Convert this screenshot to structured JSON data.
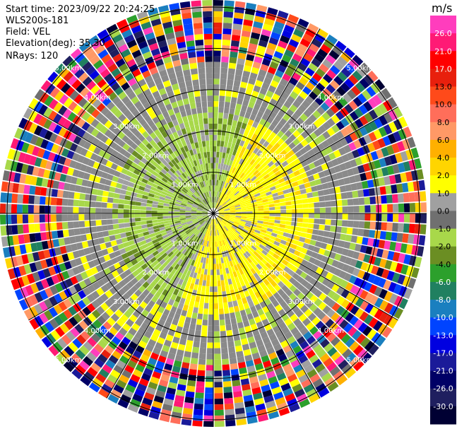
{
  "header": {
    "start_time": "Start time: 2023/09/22 20:24:25",
    "instrument": "WLS200s-181",
    "field": "Field: VEL",
    "elevation": "Elevation(deg): 35.30",
    "nrays": "NRays: 120"
  },
  "colorbar": {
    "unit": "m/s",
    "tick_labels": [
      "26.0",
      "21.0",
      "17.0",
      "13.0",
      "10.0",
      "8.0",
      "6.0",
      "4.0",
      "2.0",
      "1.0",
      "0.0",
      "-1.0",
      "-2.0",
      "-4.0",
      "-6.0",
      "-8.0",
      "-10.0",
      "-13.0",
      "-17.0",
      "-21.0",
      "-26.0",
      "-30.0"
    ],
    "colors": [
      "#ff3dbd",
      "#ff1a75",
      "#ff0000",
      "#e8200d",
      "#ff4a1a",
      "#ff6e5a",
      "#ff9966",
      "#ffb000",
      "#ffd500",
      "#ffff00",
      "#a0a0a0",
      "#707070",
      "#a8d84a",
      "#6b8e23",
      "#2ca02c",
      "#208060",
      "#1a7fbf",
      "#0044ff",
      "#0000e0",
      "#1a1a99",
      "#000066",
      "#1f1f5f",
      "#000033"
    ]
  },
  "chart_data": {
    "type": "heatmap",
    "projection": "polar PPI",
    "field": "VEL",
    "units": "m/s",
    "nrays": 120,
    "elevation_deg": 35.3,
    "range_ring_labels": [
      "1.00km",
      "2.00km",
      "3.00km",
      "4.00km",
      "5.00km"
    ],
    "colorbar_range": [
      -30.0,
      26.0
    ],
    "legend_position": "right"
  }
}
